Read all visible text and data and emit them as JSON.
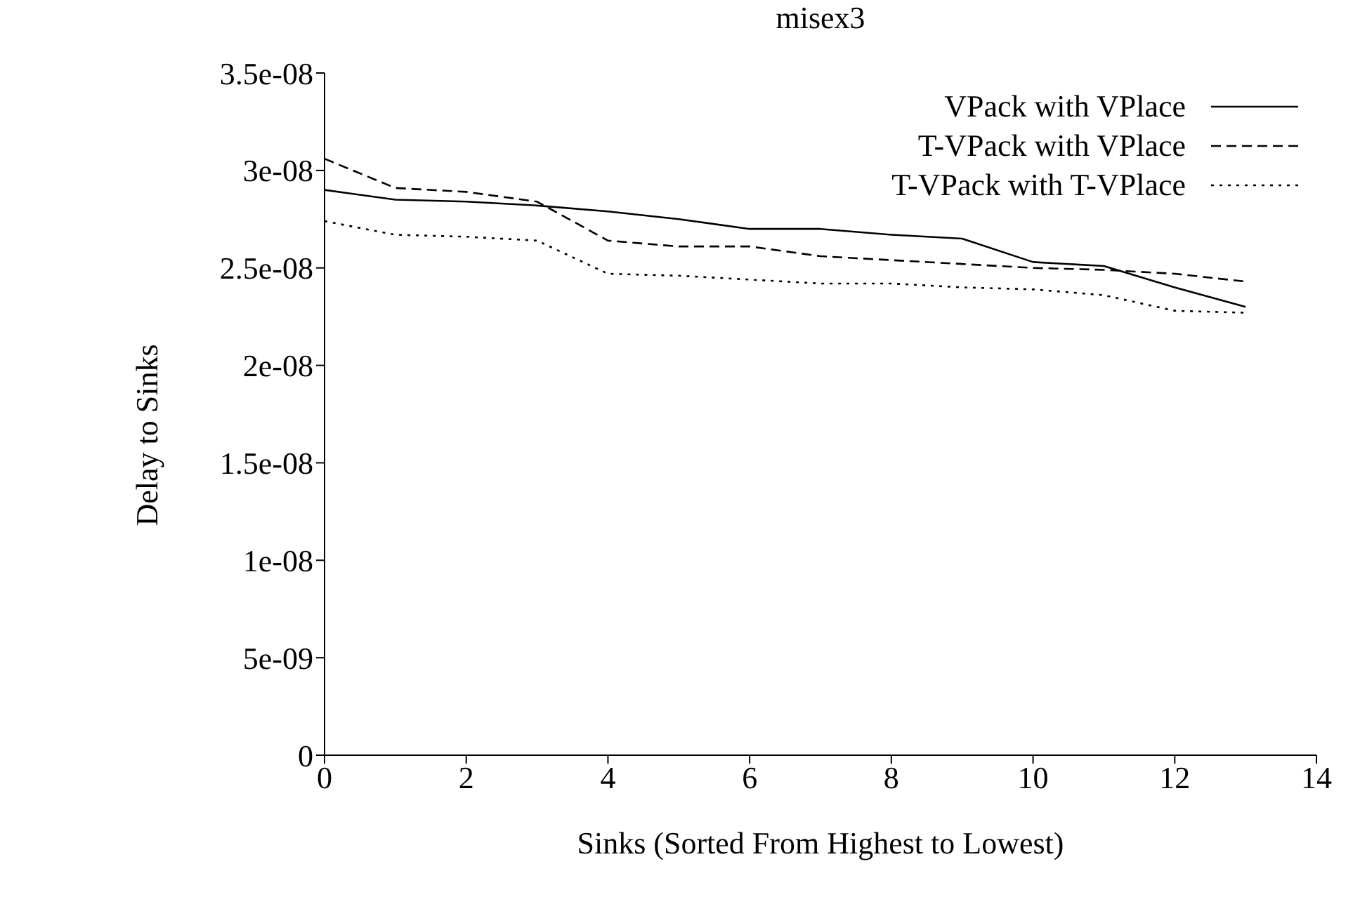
{
  "chart_data": {
    "type": "line",
    "title": "misex3",
    "xlabel": "Sinks (Sorted From Highest to Lowest)",
    "ylabel": "Delay to Sinks",
    "x": [
      0,
      1,
      2,
      3,
      4,
      5,
      6,
      7,
      8,
      9,
      10,
      11,
      12,
      13
    ],
    "xlim": [
      0,
      14
    ],
    "xticks": [
      0,
      2,
      4,
      6,
      8,
      10,
      12,
      14
    ],
    "ylim": [
      0,
      3.5e-08
    ],
    "yticks": [
      {
        "value": 0,
        "label": "0"
      },
      {
        "value": 5e-09,
        "label": "5e-09"
      },
      {
        "value": 1e-08,
        "label": "1e-08"
      },
      {
        "value": 1.5e-08,
        "label": "1.5e-08"
      },
      {
        "value": 2e-08,
        "label": "2e-08"
      },
      {
        "value": 2.5e-08,
        "label": "2.5e-08"
      },
      {
        "value": 3e-08,
        "label": "3e-08"
      },
      {
        "value": 3.5e-08,
        "label": "3.5e-08"
      }
    ],
    "grid": false,
    "legend": "top right",
    "marker": "none",
    "series": [
      {
        "name": "VPack with VPlace",
        "color": "#000000",
        "line_style": "solid",
        "values": [
          2.9e-08,
          2.85e-08,
          2.84e-08,
          2.82e-08,
          2.79e-08,
          2.75e-08,
          2.7e-08,
          2.7e-08,
          2.67e-08,
          2.65e-08,
          2.53e-08,
          2.51e-08,
          2.4e-08,
          2.3e-08
        ]
      },
      {
        "name": "T-VPack with VPlace",
        "color": "#000000",
        "line_style": "dashed",
        "values": [
          3.06e-08,
          2.91e-08,
          2.89e-08,
          2.84e-08,
          2.64e-08,
          2.61e-08,
          2.61e-08,
          2.56e-08,
          2.54e-08,
          2.52e-08,
          2.5e-08,
          2.49e-08,
          2.47e-08,
          2.43e-08
        ]
      },
      {
        "name": "T-VPack with T-VPlace",
        "color": "#000000",
        "line_style": "dotted",
        "values": [
          2.74e-08,
          2.67e-08,
          2.66e-08,
          2.64e-08,
          2.47e-08,
          2.46e-08,
          2.44e-08,
          2.42e-08,
          2.42e-08,
          2.4e-08,
          2.39e-08,
          2.36e-08,
          2.28e-08,
          2.27e-08
        ]
      }
    ]
  }
}
